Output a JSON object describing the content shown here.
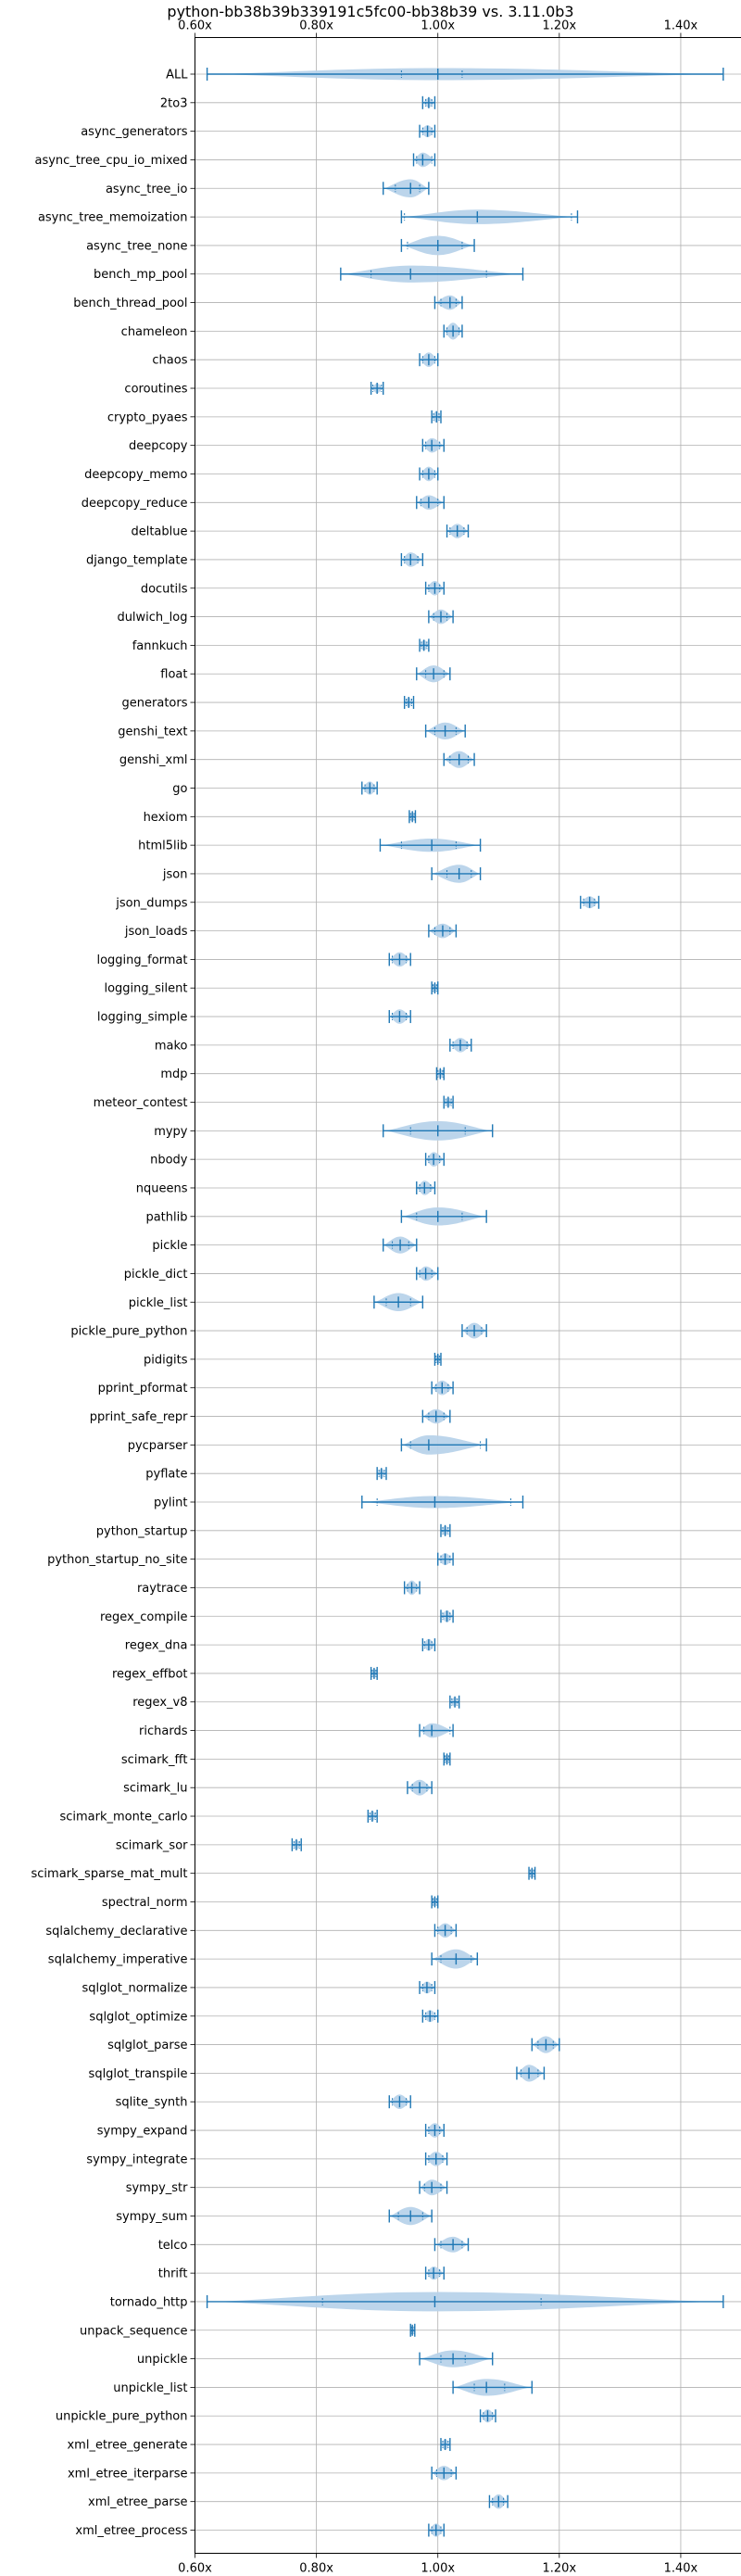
{
  "chart_data": {
    "type": "violin",
    "title": "python-bb38b39b339191c5fc00-bb38b39 vs. 3.11.0b3",
    "xlabel": "",
    "ylabel": "",
    "xlim": [
      0.6,
      1.5
    ],
    "xticks": [
      0.6,
      0.8,
      1.0,
      1.2,
      1.4
    ],
    "xtick_labels": [
      "0.60x",
      "0.80x",
      "1.00x",
      "1.20x",
      "1.40x"
    ],
    "grid": true,
    "color": "#1f77b4",
    "violin_fill": "#b8d3ea",
    "benchmarks": [
      {
        "name": "ALL",
        "min": 0.62,
        "max": 1.47,
        "p25": 0.94,
        "median": 1.0,
        "p75": 1.04,
        "width": 0.5
      },
      {
        "name": "2to3",
        "min": 0.975,
        "max": 0.995,
        "p25": 0.98,
        "median": 0.985,
        "p75": 0.99,
        "width": 0.4
      },
      {
        "name": "async_generators",
        "min": 0.97,
        "max": 0.995,
        "p25": 0.975,
        "median": 0.983,
        "p75": 0.99,
        "width": 0.5
      },
      {
        "name": "async_tree_cpu_io_mixed",
        "min": 0.96,
        "max": 0.995,
        "p25": 0.965,
        "median": 0.975,
        "p75": 0.99,
        "width": 0.6
      },
      {
        "name": "async_tree_io",
        "min": 0.91,
        "max": 0.985,
        "p25": 0.93,
        "median": 0.955,
        "p75": 0.97,
        "width": 0.75
      },
      {
        "name": "async_tree_memoization",
        "min": 0.94,
        "max": 1.23,
        "p25": 0.945,
        "median": 1.065,
        "p75": 1.22,
        "width": 0.6
      },
      {
        "name": "async_tree_none",
        "min": 0.94,
        "max": 1.06,
        "p25": 0.95,
        "median": 1.0,
        "p75": 1.04,
        "width": 0.8
      },
      {
        "name": "bench_mp_pool",
        "min": 0.84,
        "max": 1.14,
        "p25": 0.89,
        "median": 0.955,
        "p75": 1.08,
        "width": 0.7
      },
      {
        "name": "bench_thread_pool",
        "min": 0.995,
        "max": 1.04,
        "p25": 1.005,
        "median": 1.02,
        "p75": 1.03,
        "width": 0.6
      },
      {
        "name": "chameleon",
        "min": 1.01,
        "max": 1.04,
        "p25": 1.015,
        "median": 1.025,
        "p75": 1.035,
        "width": 0.7
      },
      {
        "name": "chaos",
        "min": 0.97,
        "max": 1.0,
        "p25": 0.975,
        "median": 0.985,
        "p75": 0.995,
        "width": 0.6
      },
      {
        "name": "coroutines",
        "min": 0.89,
        "max": 0.91,
        "p25": 0.893,
        "median": 0.9,
        "p75": 0.907,
        "width": 0.4
      },
      {
        "name": "crypto_pyaes",
        "min": 0.99,
        "max": 1.005,
        "p25": 0.993,
        "median": 0.998,
        "p75": 1.002,
        "width": 0.5
      },
      {
        "name": "deepcopy",
        "min": 0.975,
        "max": 1.01,
        "p25": 0.98,
        "median": 0.99,
        "p75": 1.003,
        "width": 0.6
      },
      {
        "name": "deepcopy_memo",
        "min": 0.97,
        "max": 1.0,
        "p25": 0.975,
        "median": 0.985,
        "p75": 0.995,
        "width": 0.6
      },
      {
        "name": "deepcopy_reduce",
        "min": 0.965,
        "max": 1.01,
        "p25": 0.972,
        "median": 0.985,
        "p75": 1.0,
        "width": 0.6
      },
      {
        "name": "deltablue",
        "min": 1.015,
        "max": 1.05,
        "p25": 1.02,
        "median": 1.032,
        "p75": 1.043,
        "width": 0.6
      },
      {
        "name": "django_template",
        "min": 0.94,
        "max": 0.975,
        "p25": 0.945,
        "median": 0.955,
        "p75": 0.967,
        "width": 0.6
      },
      {
        "name": "docutils",
        "min": 0.98,
        "max": 1.01,
        "p25": 0.985,
        "median": 0.995,
        "p75": 1.003,
        "width": 0.6
      },
      {
        "name": "dulwich_log",
        "min": 0.985,
        "max": 1.025,
        "p25": 0.993,
        "median": 1.005,
        "p75": 1.015,
        "width": 0.6
      },
      {
        "name": "fannkuch",
        "min": 0.97,
        "max": 0.985,
        "p25": 0.973,
        "median": 0.977,
        "p75": 0.982,
        "width": 0.45
      },
      {
        "name": "float",
        "min": 0.965,
        "max": 1.02,
        "p25": 0.98,
        "median": 0.993,
        "p75": 1.01,
        "width": 0.7
      },
      {
        "name": "generators",
        "min": 0.945,
        "max": 0.96,
        "p25": 0.948,
        "median": 0.952,
        "p75": 0.957,
        "width": 0.4
      },
      {
        "name": "genshi_text",
        "min": 0.98,
        "max": 1.045,
        "p25": 0.995,
        "median": 1.012,
        "p75": 1.03,
        "width": 0.7
      },
      {
        "name": "genshi_xml",
        "min": 1.01,
        "max": 1.06,
        "p25": 1.02,
        "median": 1.035,
        "p75": 1.05,
        "width": 0.7
      },
      {
        "name": "go",
        "min": 0.875,
        "max": 0.9,
        "p25": 0.88,
        "median": 0.888,
        "p75": 0.895,
        "width": 0.55
      },
      {
        "name": "hexiom",
        "min": 0.953,
        "max": 0.963,
        "p25": 0.955,
        "median": 0.958,
        "p75": 0.961,
        "width": 0.4
      },
      {
        "name": "html5lib",
        "min": 0.905,
        "max": 1.07,
        "p25": 0.94,
        "median": 0.99,
        "p75": 1.03,
        "width": 0.55
      },
      {
        "name": "json",
        "min": 0.99,
        "max": 1.07,
        "p25": 1.015,
        "median": 1.035,
        "p75": 1.055,
        "width": 0.75
      },
      {
        "name": "json_dumps",
        "min": 1.235,
        "max": 1.265,
        "p25": 1.24,
        "median": 1.25,
        "p75": 1.258,
        "width": 0.5
      },
      {
        "name": "json_loads",
        "min": 0.985,
        "max": 1.03,
        "p25": 0.995,
        "median": 1.008,
        "p75": 1.02,
        "width": 0.6
      },
      {
        "name": "logging_format",
        "min": 0.92,
        "max": 0.955,
        "p25": 0.925,
        "median": 0.937,
        "p75": 0.948,
        "width": 0.6
      },
      {
        "name": "logging_silent",
        "min": 0.99,
        "max": 1.0,
        "p25": 0.992,
        "median": 0.995,
        "p75": 0.998,
        "width": 0.4
      },
      {
        "name": "logging_simple",
        "min": 0.92,
        "max": 0.955,
        "p25": 0.925,
        "median": 0.937,
        "p75": 0.948,
        "width": 0.6
      },
      {
        "name": "mako",
        "min": 1.02,
        "max": 1.055,
        "p25": 1.025,
        "median": 1.037,
        "p75": 1.048,
        "width": 0.6
      },
      {
        "name": "mdp",
        "min": 0.998,
        "max": 1.01,
        "p25": 1.0,
        "median": 1.004,
        "p75": 1.008,
        "width": 0.4
      },
      {
        "name": "meteor_contest",
        "min": 1.01,
        "max": 1.025,
        "p25": 1.013,
        "median": 1.017,
        "p75": 1.022,
        "width": 0.4
      },
      {
        "name": "mypy",
        "min": 0.91,
        "max": 1.09,
        "p25": 0.955,
        "median": 1.0,
        "p75": 1.045,
        "width": 0.8
      },
      {
        "name": "nbody",
        "min": 0.98,
        "max": 1.01,
        "p25": 0.985,
        "median": 0.993,
        "p75": 1.003,
        "width": 0.6
      },
      {
        "name": "nqueens",
        "min": 0.965,
        "max": 0.995,
        "p25": 0.97,
        "median": 0.978,
        "p75": 0.988,
        "width": 0.6
      },
      {
        "name": "pathlib",
        "min": 0.94,
        "max": 1.08,
        "p25": 0.965,
        "median": 1.0,
        "p75": 1.04,
        "width": 0.75
      },
      {
        "name": "pickle",
        "min": 0.91,
        "max": 0.965,
        "p25": 0.925,
        "median": 0.938,
        "p75": 0.952,
        "width": 0.7
      },
      {
        "name": "pickle_dict",
        "min": 0.965,
        "max": 1.0,
        "p25": 0.97,
        "median": 0.98,
        "p75": 0.99,
        "width": 0.6
      },
      {
        "name": "pickle_list",
        "min": 0.895,
        "max": 0.975,
        "p25": 0.915,
        "median": 0.935,
        "p75": 0.955,
        "width": 0.75
      },
      {
        "name": "pickle_pure_python",
        "min": 1.04,
        "max": 1.08,
        "p25": 1.048,
        "median": 1.06,
        "p75": 1.072,
        "width": 0.65
      },
      {
        "name": "pidigits",
        "min": 0.995,
        "max": 1.005,
        "p25": 0.997,
        "median": 1.0,
        "p75": 1.003,
        "width": 0.4
      },
      {
        "name": "pprint_pformat",
        "min": 0.99,
        "max": 1.025,
        "p25": 0.997,
        "median": 1.007,
        "p75": 1.017,
        "width": 0.6
      },
      {
        "name": "pprint_safe_repr",
        "min": 0.975,
        "max": 1.02,
        "p25": 0.985,
        "median": 0.997,
        "p75": 1.01,
        "width": 0.6
      },
      {
        "name": "pycparser",
        "min": 0.94,
        "max": 1.08,
        "p25": 0.955,
        "median": 0.985,
        "p75": 1.07,
        "width": 0.8
      },
      {
        "name": "pyflate",
        "min": 0.9,
        "max": 0.915,
        "p25": 0.903,
        "median": 0.907,
        "p75": 0.912,
        "width": 0.4
      },
      {
        "name": "pylint",
        "min": 0.875,
        "max": 1.14,
        "p25": 0.9,
        "median": 0.995,
        "p75": 1.12,
        "width": 0.5
      },
      {
        "name": "python_startup",
        "min": 1.005,
        "max": 1.02,
        "p25": 1.008,
        "median": 1.012,
        "p75": 1.017,
        "width": 0.4
      },
      {
        "name": "python_startup_no_site",
        "min": 1.0,
        "max": 1.025,
        "p25": 1.005,
        "median": 1.012,
        "p75": 1.02,
        "width": 0.5
      },
      {
        "name": "raytrace",
        "min": 0.945,
        "max": 0.97,
        "p25": 0.95,
        "median": 0.957,
        "p75": 0.965,
        "width": 0.6
      },
      {
        "name": "regex_compile",
        "min": 1.005,
        "max": 1.025,
        "p25": 1.008,
        "median": 1.015,
        "p75": 1.02,
        "width": 0.5
      },
      {
        "name": "regex_dna",
        "min": 0.975,
        "max": 0.995,
        "p25": 0.978,
        "median": 0.985,
        "p75": 0.99,
        "width": 0.5
      },
      {
        "name": "regex_effbot",
        "min": 0.89,
        "max": 0.9,
        "p25": 0.892,
        "median": 0.895,
        "p75": 0.898,
        "width": 0.4
      },
      {
        "name": "regex_v8",
        "min": 1.02,
        "max": 1.035,
        "p25": 1.023,
        "median": 1.028,
        "p75": 1.032,
        "width": 0.4
      },
      {
        "name": "richards",
        "min": 0.97,
        "max": 1.025,
        "p25": 0.977,
        "median": 0.99,
        "p75": 1.02,
        "width": 0.6
      },
      {
        "name": "scimark_fft",
        "min": 1.01,
        "max": 1.02,
        "p25": 1.012,
        "median": 1.015,
        "p75": 1.018,
        "width": 0.4
      },
      {
        "name": "scimark_lu",
        "min": 0.95,
        "max": 0.99,
        "p25": 0.958,
        "median": 0.97,
        "p75": 0.982,
        "width": 0.65
      },
      {
        "name": "scimark_monte_carlo",
        "min": 0.885,
        "max": 0.9,
        "p25": 0.888,
        "median": 0.892,
        "p75": 0.897,
        "width": 0.4
      },
      {
        "name": "scimark_sor",
        "min": 0.76,
        "max": 0.775,
        "p25": 0.763,
        "median": 0.767,
        "p75": 0.772,
        "width": 0.4
      },
      {
        "name": "scimark_sparse_mat_mult",
        "min": 1.15,
        "max": 1.16,
        "p25": 1.152,
        "median": 1.155,
        "p75": 1.158,
        "width": 0.4
      },
      {
        "name": "spectral_norm",
        "min": 0.99,
        "max": 1.0,
        "p25": 0.992,
        "median": 0.995,
        "p75": 0.998,
        "width": 0.4
      },
      {
        "name": "sqlalchemy_declarative",
        "min": 0.995,
        "max": 1.03,
        "p25": 1.0,
        "median": 1.012,
        "p75": 1.022,
        "width": 0.6
      },
      {
        "name": "sqlalchemy_imperative",
        "min": 0.99,
        "max": 1.065,
        "p25": 1.005,
        "median": 1.03,
        "p75": 1.055,
        "width": 0.8
      },
      {
        "name": "sqlglot_normalize",
        "min": 0.97,
        "max": 0.995,
        "p25": 0.975,
        "median": 0.982,
        "p75": 0.99,
        "width": 0.5
      },
      {
        "name": "sqlglot_optimize",
        "min": 0.975,
        "max": 1.0,
        "p25": 0.98,
        "median": 0.987,
        "p75": 0.995,
        "width": 0.5
      },
      {
        "name": "sqlglot_parse",
        "min": 1.155,
        "max": 1.2,
        "p25": 1.165,
        "median": 1.178,
        "p75": 1.19,
        "width": 0.7
      },
      {
        "name": "sqlglot_transpile",
        "min": 1.13,
        "max": 1.175,
        "p25": 1.137,
        "median": 1.15,
        "p75": 1.165,
        "width": 0.7
      },
      {
        "name": "sqlite_synth",
        "min": 0.92,
        "max": 0.955,
        "p25": 0.925,
        "median": 0.937,
        "p75": 0.948,
        "width": 0.6
      },
      {
        "name": "sympy_expand",
        "min": 0.98,
        "max": 1.01,
        "p25": 0.985,
        "median": 0.995,
        "p75": 1.003,
        "width": 0.6
      },
      {
        "name": "sympy_integrate",
        "min": 0.98,
        "max": 1.015,
        "p25": 0.985,
        "median": 0.997,
        "p75": 1.008,
        "width": 0.6
      },
      {
        "name": "sympy_str",
        "min": 0.97,
        "max": 1.015,
        "p25": 0.978,
        "median": 0.99,
        "p75": 1.005,
        "width": 0.65
      },
      {
        "name": "sympy_sum",
        "min": 0.92,
        "max": 0.99,
        "p25": 0.935,
        "median": 0.955,
        "p75": 0.975,
        "width": 0.75
      },
      {
        "name": "telco",
        "min": 0.995,
        "max": 1.05,
        "p25": 1.005,
        "median": 1.025,
        "p75": 1.04,
        "width": 0.65
      },
      {
        "name": "thrift",
        "min": 0.98,
        "max": 1.01,
        "p25": 0.985,
        "median": 0.993,
        "p75": 1.003,
        "width": 0.55
      },
      {
        "name": "tornado_http",
        "min": 0.62,
        "max": 1.47,
        "p25": 0.81,
        "median": 0.995,
        "p75": 1.17,
        "width": 0.8
      },
      {
        "name": "unpack_sequence",
        "min": 0.955,
        "max": 0.962,
        "p25": 0.956,
        "median": 0.958,
        "p75": 0.961,
        "width": 0.4
      },
      {
        "name": "unpickle",
        "min": 0.97,
        "max": 1.09,
        "p25": 1.005,
        "median": 1.025,
        "p75": 1.045,
        "width": 0.7
      },
      {
        "name": "unpickle_list",
        "min": 1.025,
        "max": 1.155,
        "p25": 1.06,
        "median": 1.08,
        "p75": 1.11,
        "width": 0.7
      },
      {
        "name": "unpickle_pure_python",
        "min": 1.07,
        "max": 1.095,
        "p25": 1.075,
        "median": 1.082,
        "p75": 1.09,
        "width": 0.55
      },
      {
        "name": "xml_etree_generate",
        "min": 1.005,
        "max": 1.02,
        "p25": 1.008,
        "median": 1.012,
        "p75": 1.017,
        "width": 0.45
      },
      {
        "name": "xml_etree_iterparse",
        "min": 0.99,
        "max": 1.03,
        "p25": 0.998,
        "median": 1.01,
        "p75": 1.022,
        "width": 0.6
      },
      {
        "name": "xml_etree_parse",
        "min": 1.085,
        "max": 1.115,
        "p25": 1.09,
        "median": 1.1,
        "p75": 1.108,
        "width": 0.6
      },
      {
        "name": "xml_etree_process",
        "min": 0.985,
        "max": 1.01,
        "p25": 0.99,
        "median": 0.997,
        "p75": 1.005,
        "width": 0.55
      }
    ]
  }
}
